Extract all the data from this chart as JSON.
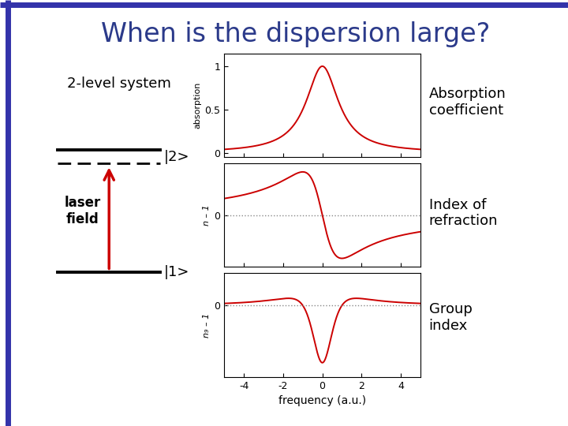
{
  "title": "When is the dispersion large?",
  "title_color": "#2B3A8A",
  "title_fontsize": 24,
  "background_color": "#FFFFFF",
  "label1": "Absorption\ncoefficient",
  "label2": "Index of\nrefraction",
  "label3": "Group\nindex",
  "xlabel": "frequency (a.u.)",
  "ylabel1": "absorption",
  "ylabel2": "n – 1",
  "ylabel3": "n₉ – 1",
  "curve_color": "#CC0000",
  "dotted_color": "#888888",
  "level_text1": "|2>",
  "level_text2": "|1>",
  "level_text3": "2-level system",
  "level_text4": "laser\nfield",
  "arrow_color": "#CC0000",
  "border_color": "#3333AA",
  "label_fontsize": 13,
  "tick_fontsize": 9
}
